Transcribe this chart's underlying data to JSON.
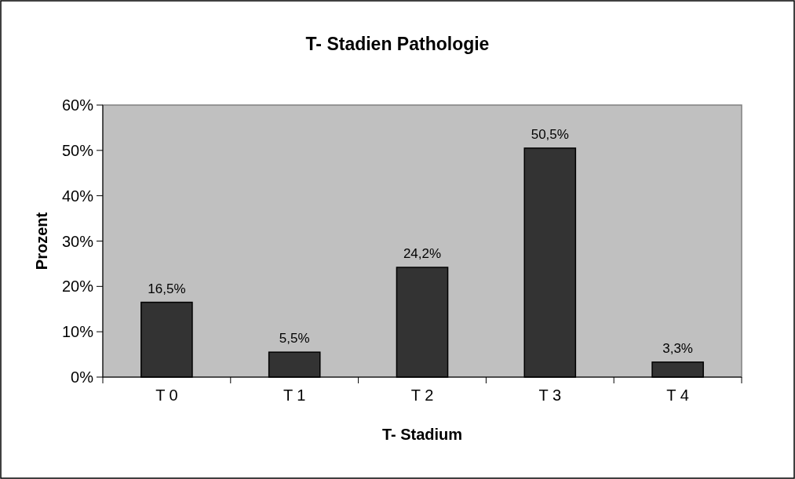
{
  "chart_data": {
    "type": "bar",
    "title": "T- Stadien Pathologie",
    "xlabel": "T- Stadium",
    "ylabel": "Prozent",
    "categories": [
      "T 0",
      "T 1",
      "T 2",
      "T 3",
      "T 4"
    ],
    "values": [
      16.5,
      5.5,
      24.2,
      50.5,
      3.3
    ],
    "value_labels": [
      "16,5%",
      "5,5%",
      "24,2%",
      "50,5%",
      "3,3%"
    ],
    "color": "#333333",
    "ylim": [
      0,
      60
    ],
    "yticks": [
      {
        "value": 0,
        "label": "0%"
      },
      {
        "value": 10,
        "label": "10%"
      },
      {
        "value": 20,
        "label": "20%"
      },
      {
        "value": 30,
        "label": "30%"
      },
      {
        "value": 40,
        "label": "40%"
      },
      {
        "value": 50,
        "label": "50%"
      },
      {
        "value": 60,
        "label": "60%"
      }
    ],
    "grid": false
  }
}
